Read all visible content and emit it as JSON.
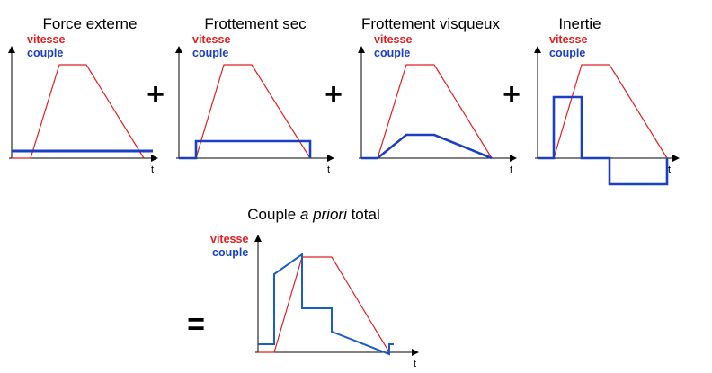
{
  "colors": {
    "vitesse": "#e02020",
    "couple": "#1a3fc0",
    "axis": "#000000"
  },
  "panels": [
    {
      "title": "Force externe",
      "vitesse_label": "vitesse",
      "couple_label": "couple",
      "t_label": "t"
    },
    {
      "title": "Frottement sec",
      "vitesse_label": "vitesse",
      "couple_label": "couple",
      "t_label": "t"
    },
    {
      "title": "Frottement visqueux",
      "vitesse_label": "vitesse",
      "couple_label": "couple",
      "t_label": "t"
    },
    {
      "title": "Inertie",
      "vitesse_label": "vitesse",
      "couple_label": "couple",
      "t_label": "t"
    }
  ],
  "operators": {
    "plus": "+",
    "equals": "="
  },
  "total": {
    "title_before": "Couple ",
    "title_italic": "a priori",
    "title_after": " total",
    "vitesse_label": "vitesse",
    "couple_label": "couple",
    "t_label": "t"
  }
}
